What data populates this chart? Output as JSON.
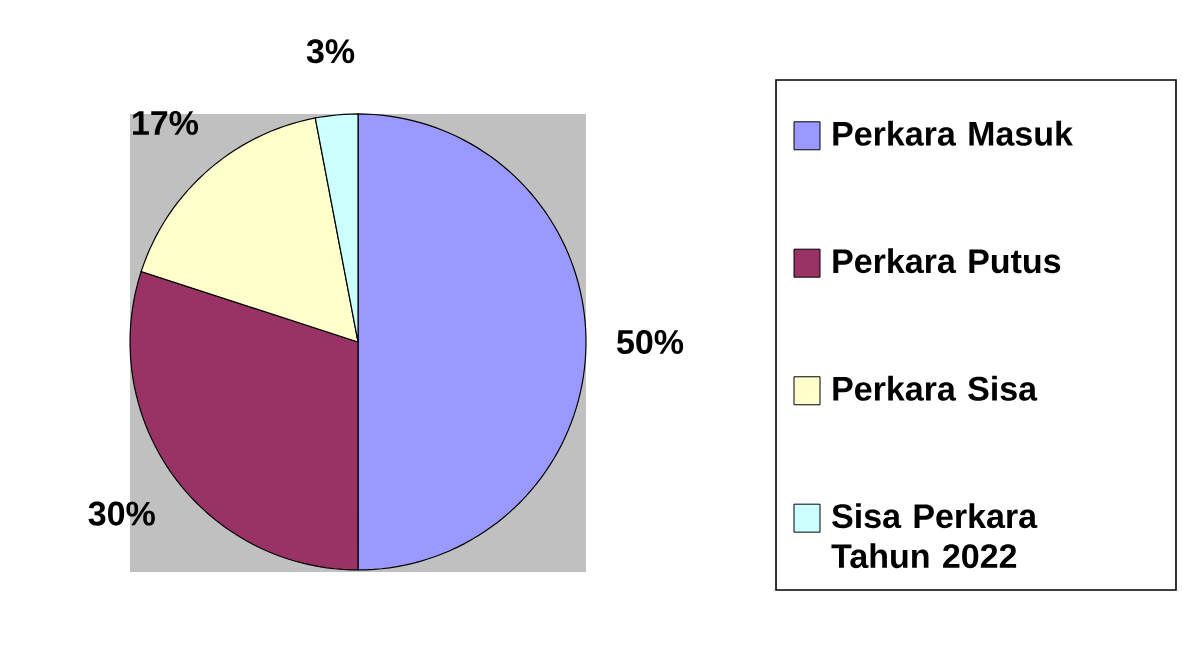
{
  "chart_data": {
    "type": "pie",
    "categories": [
      "Perkara Masuk",
      "Perkara Putus",
      "Perkara Sisa",
      "Sisa Perkara Tahun 2022"
    ],
    "values": [
      50,
      30,
      17,
      3
    ],
    "value_labels": [
      "50%",
      "30%",
      "17%",
      "3%"
    ],
    "colors": [
      "#9999ff",
      "#993366",
      "#ffffcc",
      "#ccffff"
    ],
    "legend": "right"
  }
}
